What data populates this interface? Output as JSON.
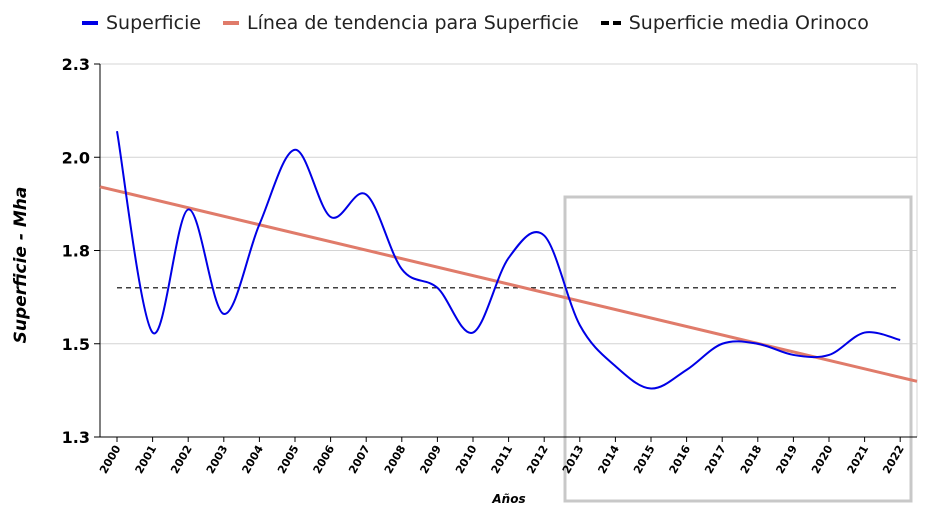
{
  "chart_data": {
    "type": "line",
    "title": "",
    "xlabel": "Años",
    "ylabel": "Superficie - Mha",
    "ylim": [
      1.25,
      2.25
    ],
    "y_ticks": [
      "1.3",
      "1.5",
      "1.8",
      "2.0",
      "2.3"
    ],
    "y_tick_values": [
      1.25,
      1.5,
      1.75,
      2.0,
      2.25
    ],
    "x": [
      "2000",
      "2001",
      "2002",
      "2003",
      "2004",
      "2005",
      "2006",
      "2007",
      "2008",
      "2009",
      "2010",
      "2011",
      "2012",
      "2013",
      "2014",
      "2015",
      "2016",
      "2017",
      "2018",
      "2019",
      "2020",
      "2021",
      "2022"
    ],
    "grid": true,
    "legend_position": "top",
    "series": [
      {
        "name": "Superficie",
        "style": "smooth-line",
        "color": "#0000e6",
        "values": [
          2.07,
          1.53,
          1.86,
          1.58,
          1.82,
          2.02,
          1.84,
          1.9,
          1.7,
          1.65,
          1.53,
          1.73,
          1.79,
          1.55,
          1.44,
          1.38,
          1.43,
          1.5,
          1.5,
          1.47,
          1.47,
          1.53,
          1.51
        ]
      },
      {
        "name": "Línea de tendencia para Superficie",
        "style": "trendline",
        "color": "#e07b6a",
        "start": {
          "x": 2000,
          "y": 1.91
        },
        "end": {
          "x": 2022,
          "y": 1.41
        }
      },
      {
        "name": "Superficie media Orinoco",
        "style": "dashed",
        "color": "#000000",
        "value": 1.65
      }
    ]
  }
}
